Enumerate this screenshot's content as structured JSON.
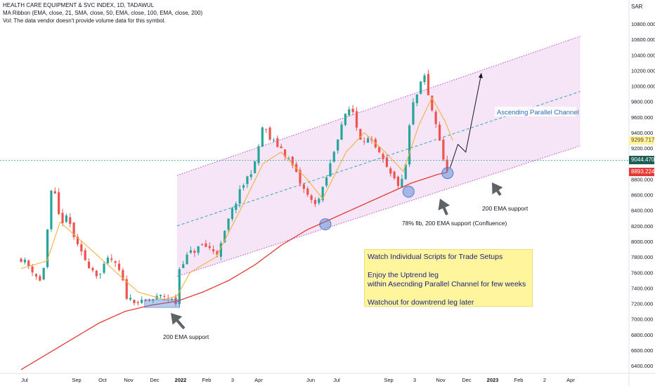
{
  "header": {
    "title": "HEALTH CARE EQUIPMENT & SVC INDEX, 1D, TADAWUL",
    "indicator": "MA Ribbon (EMA, close, 21, SMA, close, 50, EMA, close, 100, EMA, close, 200)",
    "volume": "Vol: The data vendor doesn't provide volume data for this symbol."
  },
  "currency": "SAR",
  "price_tags": [
    {
      "label": "9299.717",
      "value": 9299.717,
      "bg": "#fff59d",
      "fg": "#5d4037"
    },
    {
      "label": "9044.470",
      "value": 9044.47,
      "bg": "#1b5e54",
      "fg": "#ffffff"
    },
    {
      "label": "8893.224",
      "value": 8893.224,
      "bg": "#e53935",
      "fg": "#ffffff"
    }
  ],
  "annotations": {
    "channel_label": "Ascending Parallel Channel",
    "support_dec": "200 EMA support",
    "support_jul": "78% fib, 200 EMA support (Confluence)",
    "support_nov": "200 EMA support"
  },
  "note": {
    "lines": [
      "Watch Individual Scripts for Trade Setups",
      "",
      "Enjoy the Uptrend leg",
      "within Asecnding Parallel Channel for few weeks",
      "",
      "Watchout for downtrend leg later"
    ]
  },
  "colors": {
    "up": "#26a69a",
    "down": "#ef5350",
    "ema21": "#f5b041",
    "ema200": "#e53935",
    "channel": "#c048c8",
    "channel_fill": "#f3e0f4",
    "midline": "#3aa0c8",
    "marker": "#4a7fd0"
  },
  "chart_data": {
    "type": "candlestick",
    "title": "HEALTH CARE EQUIPMENT & SVC INDEX, 1D, TADAWUL",
    "ylabel": "SAR",
    "ylim": [
      6300,
      11000
    ],
    "y_ticks": [
      6400,
      6600,
      6800,
      7000,
      7200,
      7400,
      7600,
      7800,
      8000,
      8200,
      8400,
      8600,
      8800,
      9200,
      9400,
      9600,
      9800,
      10000,
      10200,
      10400,
      10600,
      10800
    ],
    "y_tick_labels": [
      "6400.000",
      "6600.000",
      "6800.000",
      "7000.000",
      "7200.000",
      "7400.000",
      "7600.000",
      "7800.000",
      "8000.000",
      "8200.000",
      "8400.000",
      "8600.000",
      "8800.000",
      "9200.000",
      "9400.000",
      "9600.000",
      "9800.000",
      "10000.000",
      "10200.000",
      "10400.000",
      "10600.000",
      "10800.000"
    ],
    "x_ticks": [
      "Jul",
      "Sep",
      "Oct",
      "Nov",
      "Dec",
      "2022",
      "Feb",
      "3",
      "Apr",
      "Jun",
      "Jul",
      "Sep",
      "3",
      "Nov",
      "Dec",
      "2023",
      "Feb",
      "2",
      "Apr"
    ],
    "x_tick_months": [
      0,
      2,
      3,
      4,
      5,
      6,
      7,
      8,
      9,
      11,
      12,
      14,
      15,
      16,
      17,
      18,
      19,
      20,
      21
    ],
    "close_path": [
      [
        0,
        7780
      ],
      [
        0.4,
        7650
      ],
      [
        0.8,
        7450
      ],
      [
        1.0,
        8100
      ],
      [
        1.2,
        8750
      ],
      [
        1.5,
        8250
      ],
      [
        1.8,
        8300
      ],
      [
        2.2,
        7900
      ],
      [
        2.6,
        7700
      ],
      [
        3.0,
        7550
      ],
      [
        3.4,
        7800
      ],
      [
        3.8,
        7600
      ],
      [
        4.1,
        7250
      ],
      [
        4.4,
        7250
      ],
      [
        4.6,
        7200
      ],
      [
        5.0,
        7250
      ],
      [
        5.5,
        7300
      ],
      [
        6.0,
        7200
      ],
      [
        6.1,
        7700
      ],
      [
        6.5,
        7850
      ],
      [
        7.0,
        7950
      ],
      [
        7.6,
        7850
      ],
      [
        8.0,
        8300
      ],
      [
        8.5,
        8700
      ],
      [
        9.0,
        9000
      ],
      [
        9.3,
        9500
      ],
      [
        9.6,
        9300
      ],
      [
        10.0,
        9200
      ],
      [
        10.4,
        9000
      ],
      [
        10.8,
        8700
      ],
      [
        11.2,
        8500
      ],
      [
        11.5,
        8550
      ],
      [
        11.9,
        9000
      ],
      [
        12.3,
        9500
      ],
      [
        12.7,
        9750
      ],
      [
        13.0,
        9350
      ],
      [
        13.4,
        9300
      ],
      [
        13.8,
        9100
      ],
      [
        14.2,
        8850
      ],
      [
        14.6,
        8700
      ],
      [
        14.8,
        9000
      ],
      [
        15.0,
        9700
      ],
      [
        15.3,
        9950
      ],
      [
        15.5,
        10150
      ],
      [
        15.7,
        9800
      ],
      [
        15.9,
        9600
      ],
      [
        16.1,
        9300
      ],
      [
        16.3,
        8900
      ],
      [
        16.5,
        9000
      ]
    ],
    "ema21": [
      [
        0,
        7650
      ],
      [
        1.0,
        7750
      ],
      [
        1.5,
        8250
      ],
      [
        2.5,
        7950
      ],
      [
        3.5,
        7650
      ],
      [
        4.5,
        7350
      ],
      [
        5.5,
        7250
      ],
      [
        6.0,
        7300
      ],
      [
        6.5,
        7600
      ],
      [
        7.5,
        7800
      ],
      [
        8.5,
        8450
      ],
      [
        9.3,
        9000
      ],
      [
        10.0,
        9150
      ],
      [
        11.0,
        8800
      ],
      [
        11.6,
        8550
      ],
      [
        12.5,
        9150
      ],
      [
        13.2,
        9400
      ],
      [
        14.0,
        9150
      ],
      [
        14.7,
        8900
      ],
      [
        15.3,
        9500
      ],
      [
        15.8,
        9850
      ],
      [
        16.3,
        9550
      ],
      [
        16.6,
        9300
      ]
    ],
    "ema200": [
      [
        0,
        6350
      ],
      [
        1.5,
        6650
      ],
      [
        3.0,
        6950
      ],
      [
        4.0,
        7100
      ],
      [
        5.0,
        7180
      ],
      [
        6.0,
        7230
      ],
      [
        7.0,
        7350
      ],
      [
        8.0,
        7500
      ],
      [
        9.0,
        7700
      ],
      [
        10.0,
        7950
      ],
      [
        11.0,
        8150
      ],
      [
        12.0,
        8300
      ],
      [
        13.0,
        8450
      ],
      [
        14.0,
        8600
      ],
      [
        15.0,
        8750
      ],
      [
        16.0,
        8860
      ],
      [
        16.4,
        8893
      ]
    ],
    "channel": {
      "upper": [
        [
          6.0,
          8850
        ],
        [
          21.5,
          10640
        ]
      ],
      "middle": [
        [
          6.0,
          8200
        ],
        [
          21.5,
          9930
        ]
      ],
      "lower": [
        [
          6.0,
          7550
        ],
        [
          21.5,
          9230
        ]
      ]
    },
    "price_line": 9044.47,
    "grid": false,
    "legend": "none"
  }
}
